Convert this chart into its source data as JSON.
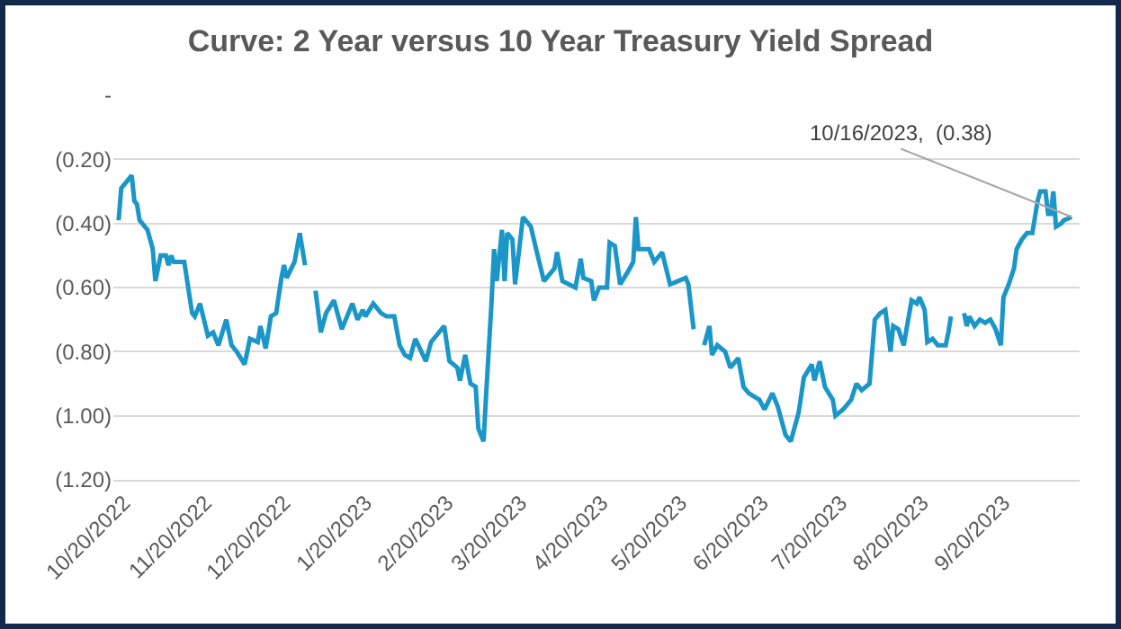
{
  "chart_data": {
    "type": "line",
    "title": "Curve: 2 Year versus 10 Year Treasury Yield Spread",
    "x": [
      "2022-10-18",
      "2022-10-19",
      "2022-10-21",
      "2022-10-23",
      "2022-10-24",
      "2022-10-25",
      "2022-10-26",
      "2022-10-27",
      "2022-10-29",
      "2022-10-31",
      "2022-11-01",
      "2022-11-03",
      "2022-11-05",
      "2022-11-06",
      "2022-11-07",
      "2022-11-08",
      "2022-11-12",
      "2022-11-15",
      "2022-11-16",
      "2022-11-18",
      "2022-11-21",
      "2022-11-23",
      "2022-11-25",
      "2022-11-28",
      "2022-11-30",
      "2022-12-02",
      "2022-12-05",
      "2022-12-07",
      "2022-12-10",
      "2022-12-11",
      "2022-12-13",
      "2022-12-15",
      "2022-12-17",
      "2022-12-19",
      "2022-12-20",
      "2022-12-21",
      "2022-12-24",
      "2022-12-26",
      "2022-12-28",
      "2022-12-31",
      "2023-01-01",
      "2023-01-03",
      "2023-01-05",
      "2023-01-08",
      "2023-01-11",
      "2023-01-15",
      "2023-01-17",
      "2023-01-19",
      "2023-01-20",
      "2023-01-23",
      "2023-01-26",
      "2023-01-28",
      "2023-01-31",
      "2023-02-02",
      "2023-02-04",
      "2023-02-06",
      "2023-02-08",
      "2023-02-12",
      "2023-02-14",
      "2023-02-16",
      "2023-02-19",
      "2023-02-21",
      "2023-02-24",
      "2023-02-25",
      "2023-02-27",
      "2023-03-01",
      "2023-03-03",
      "2023-03-04",
      "2023-03-06",
      "2023-03-07",
      "2023-03-09",
      "2023-03-10",
      "2023-03-11",
      "2023-03-13",
      "2023-03-14",
      "2023-03-15",
      "2023-03-17",
      "2023-03-18",
      "2023-03-21",
      "2023-03-24",
      "2023-03-26",
      "2023-03-29",
      "2023-04-02",
      "2023-04-03",
      "2023-04-05",
      "2023-04-10",
      "2023-04-12",
      "2023-04-13",
      "2023-04-16",
      "2023-04-17",
      "2023-04-19",
      "2023-04-22",
      "2023-04-23",
      "2023-04-25",
      "2023-04-27",
      "2023-04-30",
      "2023-05-02",
      "2023-05-03",
      "2023-05-04",
      "2023-05-08",
      "2023-05-10",
      "2023-05-13",
      "2023-05-16",
      "2023-05-19",
      "2023-05-22",
      "2023-05-23",
      "2023-05-25",
      "2023-05-27",
      "2023-05-29",
      "2023-05-31",
      "2023-06-01",
      "2023-06-03",
      "2023-06-06",
      "2023-06-08",
      "2023-06-11",
      "2023-06-13",
      "2023-06-15",
      "2023-06-19",
      "2023-06-21",
      "2023-06-24",
      "2023-06-26",
      "2023-06-29",
      "2023-07-01",
      "2023-07-04",
      "2023-07-06",
      "2023-07-09",
      "2023-07-10",
      "2023-07-12",
      "2023-07-14",
      "2023-07-17",
      "2023-07-18",
      "2023-07-21",
      "2023-07-24",
      "2023-07-26",
      "2023-07-28",
      "2023-07-31",
      "2023-08-02",
      "2023-08-04",
      "2023-08-06",
      "2023-08-08",
      "2023-08-09",
      "2023-08-11",
      "2023-08-13",
      "2023-08-16",
      "2023-08-18",
      "2023-08-19",
      "2023-08-21",
      "2023-08-22",
      "2023-08-24",
      "2023-08-26",
      "2023-08-29",
      "2023-08-30",
      "2023-08-31",
      "2023-09-02",
      "2023-09-05",
      "2023-09-06",
      "2023-09-07",
      "2023-09-09",
      "2023-09-11",
      "2023-09-13",
      "2023-09-15",
      "2023-09-17",
      "2023-09-19",
      "2023-09-20",
      "2023-09-22",
      "2023-09-24",
      "2023-09-25",
      "2023-09-27",
      "2023-09-29",
      "2023-10-01",
      "2023-10-03",
      "2023-10-04",
      "2023-10-06",
      "2023-10-07",
      "2023-10-08",
      "2023-10-09",
      "2023-10-10",
      "2023-10-12",
      "2023-10-13",
      "2023-10-16"
    ],
    "series": [
      {
        "color": "#1a96c8",
        "values": [
          -0.39,
          -0.29,
          -0.27,
          -0.25,
          -0.33,
          -0.34,
          -0.39,
          -0.4,
          -0.42,
          -0.48,
          -0.58,
          -0.5,
          -0.5,
          -0.53,
          -0.5,
          -0.52,
          -0.52,
          -0.68,
          -0.69,
          -0.65,
          -0.75,
          -0.74,
          -0.78,
          -0.7,
          -0.78,
          -0.8,
          -0.84,
          -0.76,
          -0.77,
          -0.72,
          -0.79,
          -0.69,
          -0.68,
          -0.57,
          -0.53,
          -0.57,
          -0.52,
          -0.43,
          -0.53,
          null,
          -0.61,
          -0.74,
          -0.68,
          -0.64,
          -0.73,
          -0.65,
          -0.7,
          -0.67,
          -0.69,
          -0.65,
          -0.68,
          -0.69,
          -0.69,
          -0.78,
          -0.81,
          -0.82,
          -0.76,
          -0.83,
          -0.77,
          -0.75,
          -0.72,
          -0.83,
          -0.85,
          -0.89,
          -0.81,
          -0.9,
          -0.91,
          -1.04,
          -1.08,
          -0.93,
          -0.65,
          -0.48,
          -0.58,
          -0.42,
          -0.58,
          -0.43,
          -0.45,
          -0.59,
          -0.38,
          -0.41,
          -0.48,
          -0.58,
          -0.54,
          -0.49,
          -0.58,
          -0.6,
          -0.51,
          -0.57,
          -0.58,
          -0.64,
          -0.6,
          -0.6,
          -0.46,
          -0.47,
          -0.59,
          -0.55,
          -0.52,
          -0.38,
          -0.48,
          -0.48,
          -0.52,
          -0.49,
          -0.59,
          -0.58,
          -0.57,
          -0.59,
          -0.73,
          null,
          -0.78,
          -0.72,
          -0.81,
          -0.78,
          -0.8,
          -0.85,
          -0.82,
          -0.91,
          -0.93,
          -0.95,
          -0.98,
          -0.93,
          -0.97,
          -1.06,
          -1.08,
          -0.99,
          -0.88,
          -0.84,
          -0.89,
          -0.83,
          -0.91,
          -0.95,
          -1.0,
          -0.98,
          -0.95,
          -0.9,
          -0.92,
          -0.9,
          -0.7,
          -0.68,
          -0.67,
          -0.8,
          -0.72,
          -0.73,
          -0.78,
          -0.64,
          -0.65,
          -0.63,
          -0.67,
          -0.77,
          -0.76,
          -0.78,
          -0.78,
          -0.74,
          -0.69,
          null,
          -0.68,
          -0.72,
          -0.69,
          -0.72,
          -0.7,
          -0.71,
          -0.7,
          -0.73,
          -0.78,
          -0.63,
          -0.59,
          -0.54,
          -0.48,
          -0.45,
          -0.43,
          -0.43,
          -0.33,
          -0.3,
          -0.3,
          -0.37,
          -0.37,
          -0.3,
          -0.41,
          -0.4,
          -0.39,
          -0.38
        ]
      }
    ],
    "xlim": [
      "2022-10-16",
      "2023-10-19"
    ],
    "xticks": [
      {
        "value": "2022-10-20",
        "label": "10/20/2022"
      },
      {
        "value": "2022-11-20",
        "label": "11/20/2022"
      },
      {
        "value": "2022-12-20",
        "label": "12/20/2022"
      },
      {
        "value": "2023-01-20",
        "label": "1/20/2023"
      },
      {
        "value": "2023-02-20",
        "label": "2/20/2023"
      },
      {
        "value": "2023-03-20",
        "label": "3/20/2023"
      },
      {
        "value": "2023-04-20",
        "label": "4/20/2023"
      },
      {
        "value": "2023-05-20",
        "label": "5/20/2023"
      },
      {
        "value": "2023-06-20",
        "label": "6/20/2023"
      },
      {
        "value": "2023-07-20",
        "label": "7/20/2023"
      },
      {
        "value": "2023-08-20",
        "label": "8/20/2023"
      },
      {
        "value": "2023-09-20",
        "label": "9/20/2023"
      }
    ],
    "ylim": [
      -1.2,
      0
    ],
    "yticks": [
      {
        "value": 0,
        "label": "-"
      },
      {
        "value": -0.2,
        "label": "(0.20)"
      },
      {
        "value": -0.4,
        "label": "(0.40)"
      },
      {
        "value": -0.6,
        "label": "(0.60)"
      },
      {
        "value": -0.8,
        "label": "(0.80)"
      },
      {
        "value": -1.0,
        "label": "(1.00)"
      },
      {
        "value": -1.2,
        "label": "(1.20)"
      }
    ],
    "grid": "y",
    "annotations": [
      {
        "text": "10/16/2023,  (0.38)",
        "x": "2023-10-16",
        "y": -0.38
      }
    ]
  }
}
